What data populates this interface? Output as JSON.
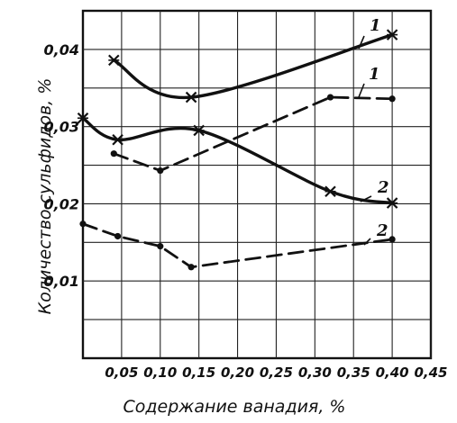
{
  "chart_data": {
    "type": "line",
    "title": "",
    "xlabel": "Содержание ванадия, %",
    "ylabel": "Количество сульфидов, %",
    "xlim": [
      0,
      0.45
    ],
    "ylim": [
      0,
      0.045
    ],
    "x_ticks": [
      {
        "value": 0.05,
        "label": "0,05"
      },
      {
        "value": 0.1,
        "label": "0,10"
      },
      {
        "value": 0.15,
        "label": "0,15"
      },
      {
        "value": 0.2,
        "label": "0,20"
      },
      {
        "value": 0.25,
        "label": "0,25"
      },
      {
        "value": 0.3,
        "label": "0,30"
      },
      {
        "value": 0.35,
        "label": "0,35"
      },
      {
        "value": 0.4,
        "label": "0,40"
      },
      {
        "value": 0.45,
        "label": "0,45"
      }
    ],
    "y_ticks": [
      {
        "value": 0.01,
        "label": "0,01"
      },
      {
        "value": 0.02,
        "label": "0,02"
      },
      {
        "value": 0.03,
        "label": "0,03"
      },
      {
        "value": 0.04,
        "label": "0,04"
      }
    ],
    "grid": true,
    "series": [
      {
        "name": "1",
        "line_style": "solid",
        "marker": "x",
        "x": [
          0.04,
          0.14,
          0.4
        ],
        "y": [
          0.0386,
          0.0338,
          0.0419
        ]
      },
      {
        "name": "1",
        "line_style": "dashed",
        "marker": "dot",
        "x": [
          0.04,
          0.1,
          0.32,
          0.4
        ],
        "y": [
          0.0265,
          0.0243,
          0.0338,
          0.0336
        ]
      },
      {
        "name": "2",
        "line_style": "solid",
        "marker": "x",
        "x": [
          0.0,
          0.045,
          0.15,
          0.32,
          0.4
        ],
        "y": [
          0.0311,
          0.0283,
          0.0295,
          0.0216,
          0.0201
        ]
      },
      {
        "name": "2",
        "line_style": "dashed",
        "marker": "dot",
        "x": [
          0.0,
          0.045,
          0.1,
          0.14,
          0.4
        ],
        "y": [
          0.0174,
          0.0158,
          0.0145,
          0.0118,
          0.0154
        ]
      }
    ]
  }
}
